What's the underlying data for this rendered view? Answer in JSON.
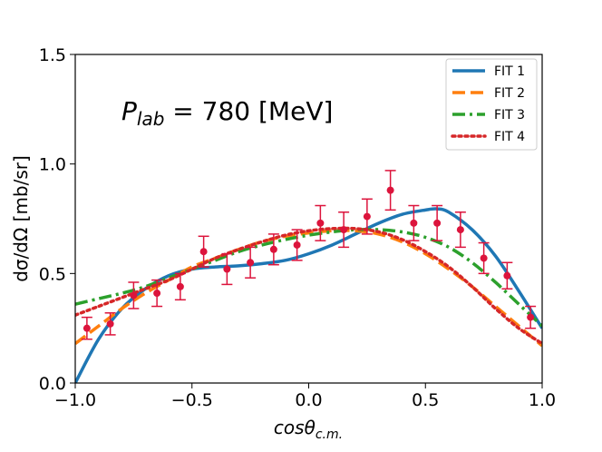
{
  "chart_data": {
    "type": "line",
    "annotation": {
      "symbol": "P",
      "subscript": "lab",
      "equals_value": " = 780 [MeV]"
    },
    "xlabel": {
      "main": "cosθ",
      "sub": "c.m."
    },
    "ylabel": "dσ/dΩ [mb/sr]",
    "xlim": [
      -1.0,
      1.0
    ],
    "ylim": [
      0.0,
      1.5
    ],
    "xticks": [
      -1.0,
      -0.5,
      0.0,
      0.5,
      1.0
    ],
    "xtick_labels": [
      "−1.0",
      "−0.5",
      "0.0",
      "0.5",
      "1.0"
    ],
    "yticks": [
      0.0,
      0.5,
      1.0,
      1.5
    ],
    "ytick_labels": [
      "0.0",
      "0.5",
      "1.0",
      "1.5"
    ],
    "legend_position": "top-right",
    "series": [
      {
        "name": "FIT 1",
        "color": "#1f77b4",
        "style": "solid",
        "x": [
          -1.0,
          -0.9,
          -0.8,
          -0.7,
          -0.6,
          -0.5,
          -0.4,
          -0.3,
          -0.2,
          -0.1,
          0.0,
          0.1,
          0.2,
          0.3,
          0.4,
          0.5,
          0.55,
          0.6,
          0.7,
          0.8,
          0.9,
          1.0
        ],
        "y": [
          0.0,
          0.2,
          0.34,
          0.43,
          0.49,
          0.52,
          0.53,
          0.535,
          0.545,
          0.56,
          0.59,
          0.63,
          0.68,
          0.73,
          0.77,
          0.79,
          0.795,
          0.78,
          0.7,
          0.58,
          0.42,
          0.25
        ]
      },
      {
        "name": "FIT 2",
        "color": "#ff7f0e",
        "style": "dashed",
        "x": [
          -1.0,
          -0.9,
          -0.8,
          -0.7,
          -0.6,
          -0.5,
          -0.4,
          -0.3,
          -0.2,
          -0.1,
          0.0,
          0.1,
          0.2,
          0.3,
          0.4,
          0.5,
          0.6,
          0.7,
          0.8,
          0.9,
          1.0
        ],
        "y": [
          0.18,
          0.26,
          0.34,
          0.41,
          0.47,
          0.53,
          0.57,
          0.61,
          0.645,
          0.67,
          0.685,
          0.695,
          0.695,
          0.68,
          0.645,
          0.59,
          0.52,
          0.44,
          0.35,
          0.26,
          0.17
        ]
      },
      {
        "name": "FIT 3",
        "color": "#2ca02c",
        "style": "dashdot",
        "x": [
          -1.0,
          -0.9,
          -0.8,
          -0.7,
          -0.6,
          -0.5,
          -0.4,
          -0.3,
          -0.2,
          -0.1,
          0.0,
          0.1,
          0.2,
          0.3,
          0.4,
          0.5,
          0.6,
          0.7,
          0.8,
          0.9,
          1.0
        ],
        "y": [
          0.36,
          0.385,
          0.41,
          0.44,
          0.48,
          0.52,
          0.56,
          0.6,
          0.63,
          0.655,
          0.675,
          0.69,
          0.7,
          0.7,
          0.69,
          0.665,
          0.62,
          0.55,
          0.46,
          0.36,
          0.26
        ]
      },
      {
        "name": "FIT 4",
        "color": "#d62728",
        "style": "dotted",
        "x": [
          -1.0,
          -0.9,
          -0.8,
          -0.7,
          -0.6,
          -0.5,
          -0.4,
          -0.3,
          -0.2,
          -0.1,
          0.0,
          0.1,
          0.2,
          0.3,
          0.4,
          0.5,
          0.6,
          0.7,
          0.8,
          0.9,
          1.0
        ],
        "y": [
          0.31,
          0.35,
          0.39,
          0.43,
          0.47,
          0.52,
          0.57,
          0.61,
          0.645,
          0.675,
          0.695,
          0.705,
          0.705,
          0.69,
          0.655,
          0.6,
          0.53,
          0.44,
          0.34,
          0.25,
          0.18
        ]
      }
    ],
    "measurements": {
      "color": "#dc143c",
      "x": [
        -0.95,
        -0.85,
        -0.75,
        -0.65,
        -0.55,
        -0.45,
        -0.35,
        -0.25,
        -0.15,
        -0.05,
        0.05,
        0.15,
        0.25,
        0.35,
        0.45,
        0.55,
        0.65,
        0.75,
        0.85,
        0.95
      ],
      "y": [
        0.25,
        0.27,
        0.4,
        0.41,
        0.44,
        0.6,
        0.52,
        0.55,
        0.61,
        0.63,
        0.73,
        0.7,
        0.76,
        0.88,
        0.73,
        0.73,
        0.7,
        0.57,
        0.49,
        0.3
      ],
      "err": [
        0.05,
        0.05,
        0.06,
        0.06,
        0.06,
        0.07,
        0.07,
        0.07,
        0.07,
        0.07,
        0.08,
        0.08,
        0.08,
        0.09,
        0.08,
        0.08,
        0.08,
        0.07,
        0.06,
        0.05
      ]
    }
  }
}
